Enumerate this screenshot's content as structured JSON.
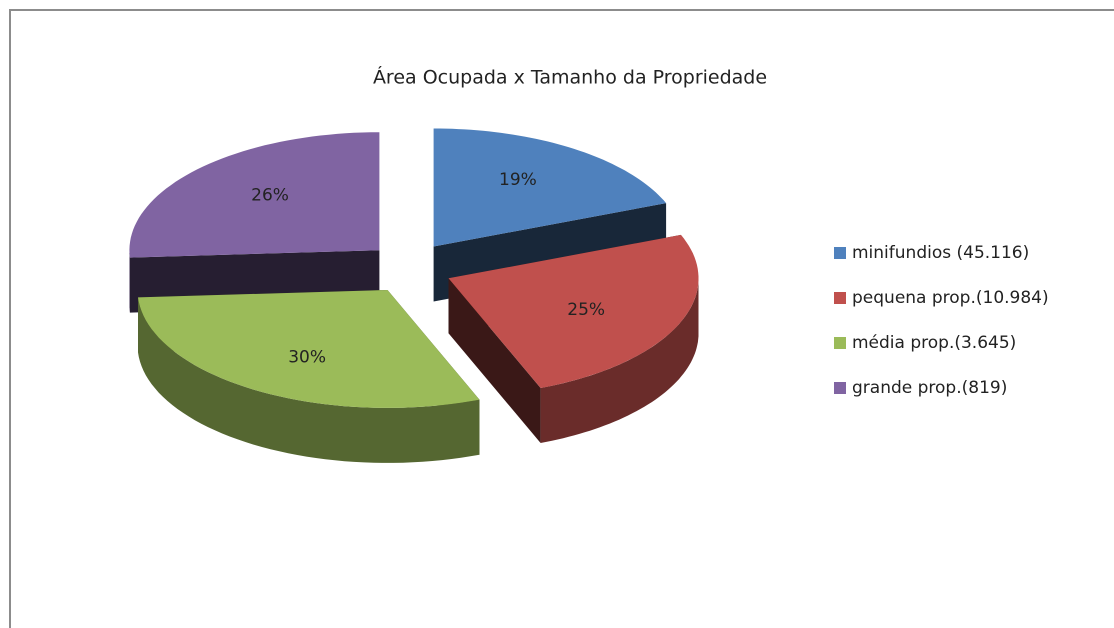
{
  "chart_data": {
    "type": "pie",
    "title": "Área Ocupada x Tamanho da Propriedade",
    "categories": [
      "minifundios (45.116)",
      "pequena prop.(10.984)",
      "média prop.(3.645)",
      "grande prop.(819)"
    ],
    "values": [
      19,
      25,
      30,
      26
    ],
    "value_labels": [
      "19%",
      "25%",
      "30%",
      "26%"
    ],
    "colors": [
      "#4f81bd",
      "#c0504d",
      "#9bbb59",
      "#8064a2"
    ],
    "legend": "right"
  }
}
